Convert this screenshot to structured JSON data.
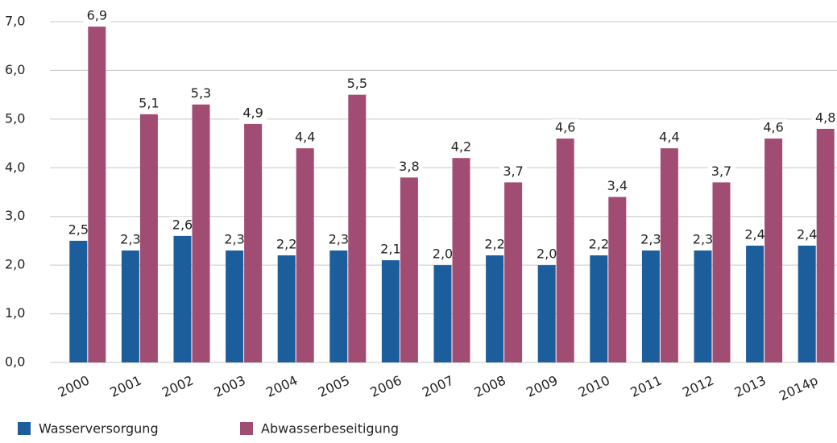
{
  "chart_data": {
    "type": "bar",
    "categories": [
      "2000",
      "2001",
      "2002",
      "2003",
      "2004",
      "2005",
      "2006",
      "2007",
      "2008",
      "2009",
      "2010",
      "2011",
      "2012",
      "2013",
      "2014p"
    ],
    "series": [
      {
        "name": "Wasserversorgung",
        "color": "#1c5d9c",
        "values": [
          2.5,
          2.3,
          2.6,
          2.3,
          2.2,
          2.3,
          2.1,
          2.0,
          2.2,
          2.0,
          2.2,
          2.3,
          2.3,
          2.4,
          2.4
        ],
        "value_labels": [
          "2,5",
          "2,3",
          "2,6",
          "2,3",
          "2,2",
          "2,3",
          "2,1",
          "2,0",
          "2,2",
          "2,0",
          "2,2",
          "2,3",
          "2,3",
          "2,4",
          "2,4"
        ]
      },
      {
        "name": "Abwasserbeseitigung",
        "color": "#a14c72",
        "values": [
          6.9,
          5.1,
          5.3,
          4.9,
          4.4,
          5.5,
          3.8,
          4.2,
          3.7,
          4.6,
          3.4,
          4.4,
          3.7,
          4.6,
          4.8
        ],
        "value_labels": [
          "6,9",
          "5,1",
          "5,3",
          "4,9",
          "4,4",
          "5,5",
          "3,8",
          "4,2",
          "3,7",
          "4,6",
          "3,4",
          "4,4",
          "3,7",
          "4,6",
          "4,8"
        ]
      }
    ],
    "ylim": [
      0,
      7
    ],
    "yticks": [
      {
        "value": 0,
        "label": "0,0"
      },
      {
        "value": 1,
        "label": "1,0"
      },
      {
        "value": 2,
        "label": "2,0"
      },
      {
        "value": 3,
        "label": "3,0"
      },
      {
        "value": 4,
        "label": "4,0"
      },
      {
        "value": 5,
        "label": "5,0"
      },
      {
        "value": 6,
        "label": "6,0"
      },
      {
        "value": 7,
        "label": "7,0"
      }
    ],
    "grid": true
  }
}
